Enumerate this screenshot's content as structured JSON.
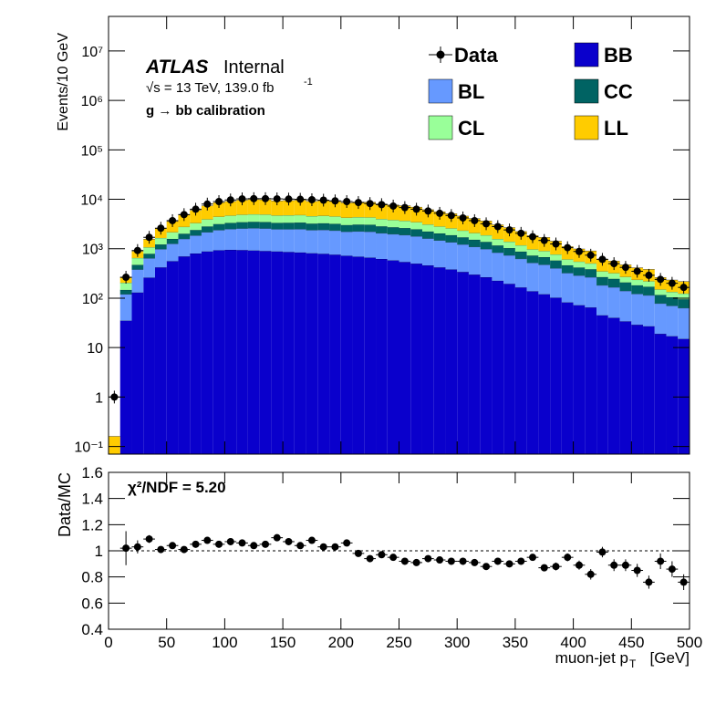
{
  "chart_data": [
    {
      "type": "histogram",
      "atlas_label": "ATLAS",
      "status_label": "Internal",
      "energy_label": "√s = 13 TeV, 139.0 fb",
      "lumi_exponent": "-1",
      "process_label": "g → bb calibration",
      "y_label": "Events/10 GeV",
      "bins": [
        0,
        10,
        20,
        30,
        40,
        50,
        60,
        70,
        80,
        90,
        100,
        110,
        120,
        130,
        140,
        150,
        160,
        170,
        180,
        190,
        200,
        210,
        220,
        230,
        240,
        250,
        260,
        270,
        280,
        290,
        300,
        310,
        320,
        330,
        340,
        350,
        360,
        370,
        380,
        390,
        400,
        410,
        420,
        430,
        440,
        450,
        460,
        470,
        480,
        490,
        500
      ],
      "xlim": [
        0,
        500
      ],
      "xticks": [
        0,
        50,
        100,
        150,
        200,
        250,
        300,
        350,
        400,
        450,
        500
      ],
      "log_y": true,
      "ylim": [
        0.07,
        50000000
      ],
      "yticks": [
        {
          "value": 0.1,
          "label": "10⁻¹"
        },
        1,
        10,
        {
          "value": 100,
          "label": "10²"
        },
        {
          "value": 1000,
          "label": "10³"
        },
        {
          "value": 10000,
          "label": "10⁴"
        },
        {
          "value": 100000,
          "label": "10⁵"
        },
        {
          "value": 1000000,
          "label": "10⁶"
        },
        {
          "value": 10000000,
          "label": "10⁷"
        }
      ],
      "stacked": true,
      "data": {
        "name": "Data",
        "color": "#000000",
        "values": [
          1,
          265,
          920,
          1700,
          2600,
          3700,
          4900,
          6300,
          8000,
          9000,
          9700,
          10200,
          10300,
          10300,
          10200,
          10100,
          10000,
          9800,
          9600,
          9300,
          9000,
          8600,
          8200,
          7800,
          7300,
          6800,
          6300,
          5800,
          5200,
          4700,
          4200,
          3700,
          3200,
          2800,
          2400,
          2050,
          1750,
          1470,
          1250,
          1050,
          880,
          740,
          610,
          500,
          420,
          350,
          290,
          240,
          200,
          165
        ]
      },
      "series": [
        {
          "name": "BB",
          "color": "#0a00cc",
          "values": [
            0,
            35,
            130,
            260,
            420,
            560,
            700,
            800,
            880,
            930,
            950,
            940,
            920,
            900,
            880,
            860,
            840,
            810,
            790,
            760,
            720,
            690,
            660,
            620,
            580,
            540,
            500,
            460,
            420,
            380,
            340,
            300,
            265,
            225,
            195,
            165,
            138,
            120,
            102,
            82,
            72,
            65,
            45,
            40,
            34,
            29,
            27,
            19,
            17,
            15
          ]
        },
        {
          "name": "BL",
          "color": "#6699ff",
          "values": [
            0,
            85,
            250,
            380,
            560,
            700,
            880,
            1050,
            1280,
            1450,
            1550,
            1630,
            1680,
            1670,
            1600,
            1620,
            1650,
            1570,
            1610,
            1570,
            1490,
            1550,
            1550,
            1440,
            1390,
            1350,
            1280,
            1150,
            1050,
            970,
            880,
            790,
            720,
            610,
            540,
            460,
            380,
            355,
            300,
            240,
            215,
            200,
            137,
            126,
            106,
            93,
            87,
            59,
            53,
            48
          ]
        },
        {
          "name": "CC",
          "color": "#006363",
          "values": [
            0,
            27,
            90,
            150,
            240,
            320,
            430,
            540,
            660,
            770,
            820,
            870,
            900,
            890,
            850,
            870,
            890,
            840,
            870,
            850,
            800,
            840,
            840,
            780,
            750,
            730,
            690,
            620,
            570,
            530,
            480,
            430,
            390,
            330,
            295,
            250,
            210,
            200,
            175,
            140,
            130,
            120,
            85,
            80,
            68,
            60,
            56,
            38,
            34,
            32
          ]
        },
        {
          "name": "CL",
          "color": "#99ff99",
          "values": [
            0,
            58,
            180,
            280,
            430,
            580,
            760,
            920,
            1120,
            1290,
            1360,
            1440,
            1480,
            1460,
            1380,
            1400,
            1420,
            1340,
            1370,
            1320,
            1240,
            1270,
            1260,
            1150,
            1100,
            1050,
            980,
            870,
            780,
            710,
            630,
            560,
            500,
            410,
            360,
            300,
            245,
            225,
            190,
            148,
            132,
            120,
            82,
            75,
            62,
            54,
            50,
            34,
            30,
            29
          ]
        },
        {
          "name": "LL",
          "color": "#ffcc00",
          "values": [
            0.16,
            55,
            240,
            490,
            920,
            1400,
            2080,
            2690,
            3460,
            4130,
            4390,
            4740,
            4920,
            4890,
            4560,
            4690,
            4820,
            4510,
            4680,
            4530,
            4240,
            4430,
            4410,
            4050,
            3860,
            3720,
            3470,
            3070,
            2770,
            2520,
            2240,
            1990,
            1765,
            1465,
            1280,
            1055,
            867,
            790,
            653,
            495,
            441,
            395,
            267,
            241,
            202,
            176,
            162,
            111,
            99,
            93
          ]
        }
      ]
    },
    {
      "type": "errorbar",
      "chi2_label": "χ²/NDF = 5.20",
      "y_label": "Data/MC",
      "x_label": "muon-jet p",
      "x_label_subscript": "T",
      "x_label_unit": "[GeV]",
      "xlim": [
        0,
        500
      ],
      "xticks": [
        0,
        50,
        100,
        150,
        200,
        250,
        300,
        350,
        400,
        450,
        500
      ],
      "ylim": [
        0.4,
        1.6
      ],
      "yticks": [
        0.4,
        0.6,
        0.8,
        1,
        1.2,
        1.4,
        1.6
      ],
      "reference_line": 1,
      "color": "#000000",
      "values": [
        null,
        1.02,
        1.03,
        1.09,
        1.01,
        1.04,
        1.01,
        1.05,
        1.08,
        1.05,
        1.07,
        1.06,
        1.04,
        1.05,
        1.1,
        1.07,
        1.04,
        1.08,
        1.03,
        1.03,
        1.06,
        0.98,
        0.94,
        0.97,
        0.95,
        0.92,
        0.91,
        0.94,
        0.93,
        0.92,
        0.92,
        0.91,
        0.88,
        0.92,
        0.9,
        0.92,
        0.95,
        0.87,
        0.88,
        0.95,
        0.89,
        0.82,
        0.99,
        0.89,
        0.89,
        0.85,
        0.76,
        0.92,
        0.86,
        0.76
      ],
      "errors": [
        null,
        0.13,
        0.05,
        0.03,
        0.02,
        0.02,
        0.015,
        0.015,
        0.015,
        0.015,
        0.015,
        0.015,
        0.015,
        0.015,
        0.015,
        0.015,
        0.015,
        0.015,
        0.015,
        0.015,
        0.015,
        0.015,
        0.015,
        0.015,
        0.015,
        0.015,
        0.015,
        0.015,
        0.015,
        0.015,
        0.015,
        0.02,
        0.02,
        0.02,
        0.02,
        0.02,
        0.025,
        0.025,
        0.03,
        0.03,
        0.035,
        0.04,
        0.04,
        0.045,
        0.045,
        0.05,
        0.05,
        0.06,
        0.06,
        0.06
      ]
    }
  ]
}
